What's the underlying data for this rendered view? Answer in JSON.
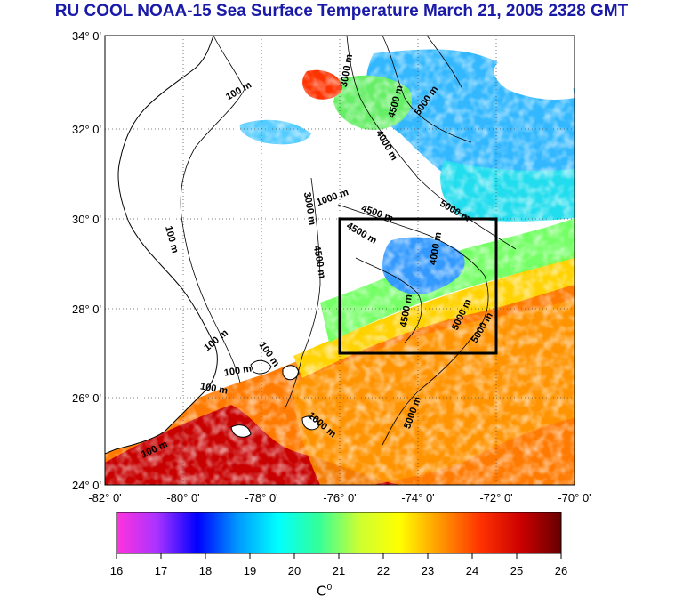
{
  "title": "RU COOL  NOAA-15 Sea Surface Temperature March 21, 2005 2328 GMT",
  "map": {
    "lon_range": [
      -82,
      -70
    ],
    "lat_range": [
      24,
      34
    ],
    "lat_ticks": [
      "34° 0'",
      "32° 0'",
      "30° 0'",
      "28° 0'",
      "26° 0'",
      "24° 0'"
    ],
    "lon_ticks": [
      "-82° 0'",
      "-80° 0'",
      "-78° 0'",
      "-76° 0'",
      "-74° 0'",
      "-72° 0'",
      "-70° 0'"
    ],
    "grid": "dotted",
    "box": {
      "lon": [
        -76,
        -72
      ],
      "lat": [
        27,
        30
      ]
    },
    "contour_labels": [
      "100 m",
      "100 m",
      "100 m",
      "100 m",
      "100 m",
      "100 m",
      "100 m",
      "1000 m",
      "3000 m",
      "3000 m",
      "4000 m",
      "4500 m",
      "4500 m",
      "4500 m",
      "4500 m",
      "5000 m",
      "5000 m",
      "5000 m",
      "5000 m",
      "5000 m",
      "4000 m",
      "1000 m",
      "4500 m"
    ]
  },
  "colorbar": {
    "ticks": [
      "16",
      "17",
      "18",
      "19",
      "20",
      "21",
      "22",
      "23",
      "24",
      "25",
      "26"
    ],
    "unit": "C",
    "unit_sup": "0",
    "colors": [
      "#ff33dd",
      "#aa33ff",
      "#0000ff",
      "#0099ff",
      "#00ffff",
      "#33ff99",
      "#ccff33",
      "#ffff00",
      "#ff9900",
      "#ff3300",
      "#cc0000",
      "#660000"
    ]
  }
}
